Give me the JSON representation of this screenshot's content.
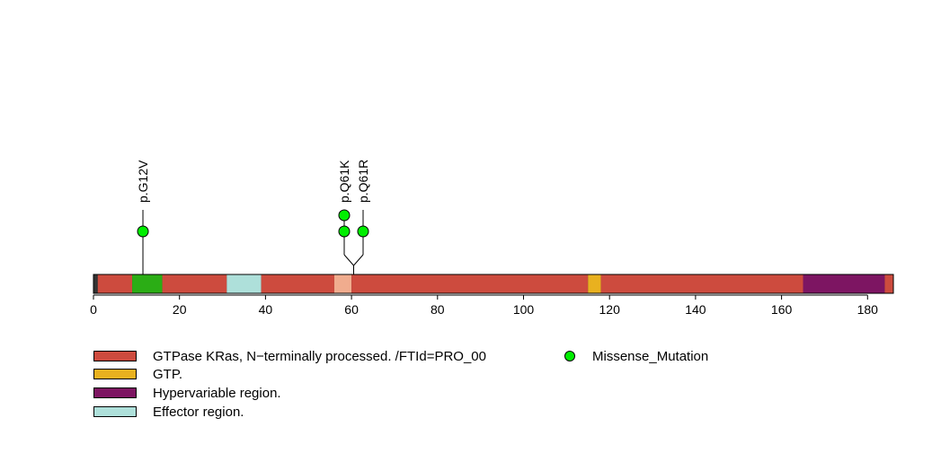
{
  "chart_data": {
    "type": "lollipop",
    "title": "",
    "xlabel": "",
    "ylabel": "",
    "xlim": [
      0,
      186
    ],
    "x_ticks": [
      0,
      20,
      40,
      60,
      80,
      100,
      120,
      140,
      160,
      180
    ],
    "x_tick_labels": [
      "0",
      "20",
      "40",
      "60",
      "80",
      "100",
      "120",
      "140",
      "160",
      "180"
    ],
    "protein_length": 186,
    "backbone_color": "#333333",
    "regions": [
      {
        "start": 1,
        "end": 9,
        "color": "#CD4B3E",
        "legend": 0
      },
      {
        "start": 9,
        "end": 16,
        "color": "#2BAD15",
        "legend": null
      },
      {
        "start": 16,
        "end": 31,
        "color": "#CD4B3E",
        "legend": 0
      },
      {
        "start": 31,
        "end": 39,
        "color": "#AEE0DA",
        "legend": 3
      },
      {
        "start": 39,
        "end": 56,
        "color": "#CD4B3E",
        "legend": 0
      },
      {
        "start": 56,
        "end": 60,
        "color": "#F0AC8E",
        "legend": null
      },
      {
        "start": 60,
        "end": 115,
        "color": "#CD4B3E",
        "legend": 0
      },
      {
        "start": 115,
        "end": 118,
        "color": "#E9B11F",
        "legend": 1
      },
      {
        "start": 118,
        "end": 165,
        "color": "#CD4B3E",
        "legend": 0
      },
      {
        "start": 165,
        "end": 184,
        "color": "#7D1562",
        "legend": 2
      },
      {
        "start": 184,
        "end": 186,
        "color": "#CD4B3E",
        "legend": 0
      }
    ],
    "mutations": [
      {
        "label": "p.G12V",
        "position": 12,
        "count": 1,
        "type": "Missense_Mutation",
        "color": "#00EE00"
      },
      {
        "label": "p.Q61K",
        "position": 61,
        "count": 2,
        "type": "Missense_Mutation",
        "color": "#00EE00"
      },
      {
        "label": "p.Q61R",
        "position": 61,
        "count": 1,
        "type": "Missense_Mutation",
        "color": "#00EE00"
      }
    ]
  },
  "legend": {
    "regions": [
      {
        "label": "GTPase KRas, N−terminally processed. /FTId=PRO_00",
        "color": "#CD4B3E"
      },
      {
        "label": "GTP.",
        "color": "#E9B11F"
      },
      {
        "label": "Hypervariable region.",
        "color": "#7D1562"
      },
      {
        "label": "Effector region.",
        "color": "#AEE0DA"
      }
    ],
    "mutation_types": [
      {
        "label": "Missense_Mutation",
        "color": "#00EE00"
      }
    ]
  }
}
